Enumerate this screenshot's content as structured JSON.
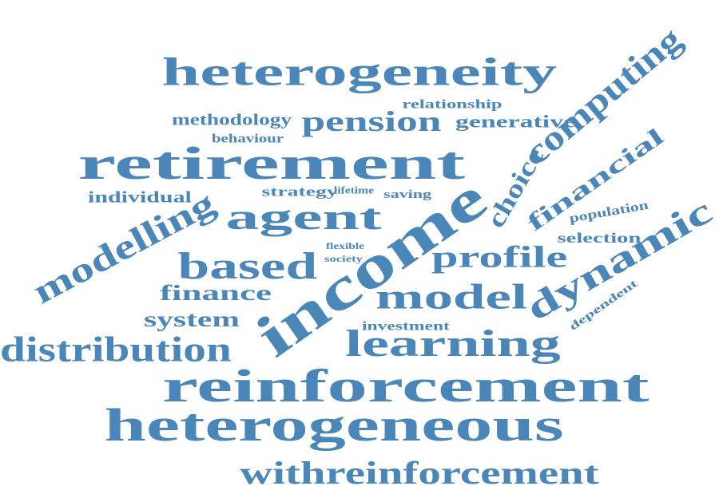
{
  "colors": {
    "word": "#4a86b8",
    "background": "#ffffff"
  },
  "words": [
    {
      "id": "heterogeneity",
      "text": "heterogeneity"
    },
    {
      "id": "computing",
      "text": "computing"
    },
    {
      "id": "relationship",
      "text": "relationship"
    },
    {
      "id": "methodology",
      "text": "methodology"
    },
    {
      "id": "pension",
      "text": "pension"
    },
    {
      "id": "generative",
      "text": "generative"
    },
    {
      "id": "behaviour",
      "text": "behaviour"
    },
    {
      "id": "retirement",
      "text": "retirement"
    },
    {
      "id": "choice",
      "text": "choice"
    },
    {
      "id": "financial",
      "text": "financial"
    },
    {
      "id": "individual",
      "text": "individual"
    },
    {
      "id": "strategy",
      "text": "strategy"
    },
    {
      "id": "lifetime",
      "text": "lifetime"
    },
    {
      "id": "saving",
      "text": "saving"
    },
    {
      "id": "agent",
      "text": "agent"
    },
    {
      "id": "income",
      "text": "income"
    },
    {
      "id": "population",
      "text": "population"
    },
    {
      "id": "modelling",
      "text": "modelling"
    },
    {
      "id": "selection",
      "text": "selection"
    },
    {
      "id": "dynamic",
      "text": "dynamic"
    },
    {
      "id": "flexible",
      "text": "flexible"
    },
    {
      "id": "society",
      "text": "society"
    },
    {
      "id": "based",
      "text": "based"
    },
    {
      "id": "profile",
      "text": "profile"
    },
    {
      "id": "finance",
      "text": "finance"
    },
    {
      "id": "model",
      "text": "model"
    },
    {
      "id": "dependent",
      "text": "dependent"
    },
    {
      "id": "system",
      "text": "system"
    },
    {
      "id": "investment",
      "text": "investment"
    },
    {
      "id": "distribution",
      "text": "distribution"
    },
    {
      "id": "learning",
      "text": "learning"
    },
    {
      "id": "reinforcement",
      "text": "reinforcement"
    },
    {
      "id": "heterogeneous",
      "text": "heterogeneous"
    },
    {
      "id": "withreinforcement",
      "text": "withreinforcement"
    }
  ]
}
